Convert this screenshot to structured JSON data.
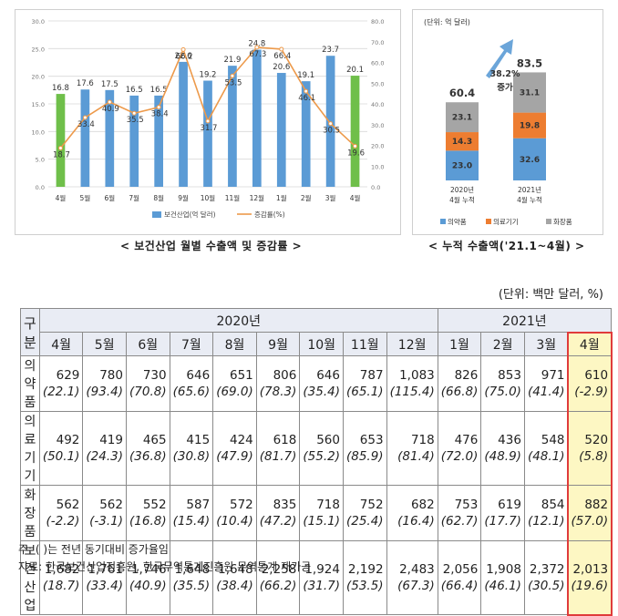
{
  "chart_data": [
    {
      "type": "bar",
      "title": "< 보건산업 월별 수출액 및 증감률 >",
      "categories": [
        "4월",
        "5월",
        "6월",
        "7월",
        "8월",
        "9월",
        "10월",
        "11월",
        "12월",
        "1월",
        "2월",
        "3월",
        "4월"
      ],
      "series": [
        {
          "name": "보건산업(억 달러)",
          "kind": "bar",
          "axis": "left",
          "values": [
            16.8,
            17.6,
            17.5,
            16.5,
            16.5,
            22.6,
            19.2,
            21.9,
            24.8,
            20.6,
            19.1,
            23.7,
            20.1
          ],
          "colors": [
            "#6fbf4a",
            "#5b9bd5",
            "#5b9bd5",
            "#5b9bd5",
            "#5b9bd5",
            "#5b9bd5",
            "#5b9bd5",
            "#5b9bd5",
            "#5b9bd5",
            "#5b9bd5",
            "#5b9bd5",
            "#5b9bd5",
            "#6fbf4a"
          ]
        },
        {
          "name": "증감률(%)",
          "kind": "line",
          "axis": "right",
          "values": [
            18.7,
            33.4,
            40.9,
            35.5,
            38.4,
            66.2,
            31.7,
            53.5,
            67.3,
            66.4,
            46.1,
            30.5,
            19.6
          ],
          "color": "#ed9a4b"
        }
      ],
      "y_left": {
        "min": 0,
        "max": 30,
        "ticks": [
          "0.0",
          "5.0",
          "10.0",
          "15.0",
          "20.0",
          "25.0",
          "30.0"
        ]
      },
      "y_right": {
        "min": 0,
        "max": 80,
        "ticks": [
          "0.0",
          "10.0",
          "20.0",
          "30.0",
          "40.0",
          "50.0",
          "60.0",
          "70.0",
          "80.0"
        ]
      },
      "grid": true,
      "legend": "bottom"
    },
    {
      "type": "bar",
      "stacked": true,
      "title": "< 누적 수출액('21.1~4월) >",
      "unit_label": "(단위: 억 달러)",
      "categories": [
        [
          "2020년",
          "4월 누적"
        ],
        [
          "2021년",
          "4월 누적"
        ]
      ],
      "series": [
        {
          "name": "의약품",
          "values": [
            23.0,
            32.6
          ],
          "color": "#5b9bd5"
        },
        {
          "name": "의료기기",
          "values": [
            14.3,
            19.8
          ],
          "color": "#ed7d31"
        },
        {
          "name": "화장품",
          "values": [
            23.1,
            31.1
          ],
          "color": "#a5a5a5"
        }
      ],
      "totals": [
        "60.4",
        "83.5"
      ],
      "annotation": {
        "line1": "38.2%",
        "line2": "증가"
      },
      "legend": "bottom"
    }
  ],
  "unit_note": "(단위: 백만 달러, %)",
  "table": {
    "corner": "구분",
    "year_headers": [
      {
        "label": "2020년",
        "span": 9
      },
      {
        "label": "2021년",
        "span": 4
      }
    ],
    "months": [
      "4월",
      "5월",
      "6월",
      "7월",
      "8월",
      "9월",
      "10월",
      "11월",
      "12월",
      "1월",
      "2월",
      "3월",
      "4월"
    ],
    "rows": [
      {
        "label": "의약품",
        "values": [
          "629",
          "780",
          "730",
          "646",
          "651",
          "806",
          "646",
          "787",
          "1,083",
          "826",
          "853",
          "971",
          "610"
        ],
        "pct": [
          "(22.1)",
          "(93.4)",
          "(70.8)",
          "(65.6)",
          "(69.0)",
          "(78.3)",
          "(35.4)",
          "(65.1)",
          "(115.4)",
          "(66.8)",
          "(75.0)",
          "(41.4)",
          "(-2.9)"
        ]
      },
      {
        "label": "의료기기",
        "values": [
          "492",
          "419",
          "465",
          "415",
          "424",
          "618",
          "560",
          "653",
          "718",
          "476",
          "436",
          "548",
          "520"
        ],
        "pct": [
          "(50.1)",
          "(24.3)",
          "(36.8)",
          "(30.8)",
          "(47.9)",
          "(81.7)",
          "(55.2)",
          "(85.9)",
          "(81.4)",
          "(72.0)",
          "(48.9)",
          "(48.1)",
          "(5.8)"
        ]
      },
      {
        "label": "화장품",
        "values": [
          "562",
          "562",
          "552",
          "587",
          "572",
          "835",
          "718",
          "752",
          "682",
          "753",
          "619",
          "854",
          "882"
        ],
        "pct": [
          "(-2.2)",
          "(-3.1)",
          "(16.8)",
          "(15.4)",
          "(10.4)",
          "(47.2)",
          "(15.1)",
          "(25.4)",
          "(16.4)",
          "(62.7)",
          "(17.7)",
          "(12.1)",
          "(57.0)"
        ]
      },
      {
        "label": "보건산업",
        "values": [
          "1,682",
          "1,761",
          "1,746",
          "1,648",
          "1,648",
          "2,258",
          "1,924",
          "2,192",
          "2,483",
          "2,056",
          "1,908",
          "2,372",
          "2,013"
        ],
        "pct": [
          "(18.7)",
          "(33.4)",
          "(40.9)",
          "(35.5)",
          "(38.4)",
          "(66.2)",
          "(31.7)",
          "(53.5)",
          "(67.3)",
          "(66.4)",
          "(46.1)",
          "(30.5)",
          "(19.6)"
        ]
      }
    ]
  },
  "footnotes": {
    "note": "주: ( )는 전년 동기대비 증가율임",
    "source": "자료: 한국보건산업진흥원, 한국무역통계진흥원 무역통계 재가공"
  }
}
